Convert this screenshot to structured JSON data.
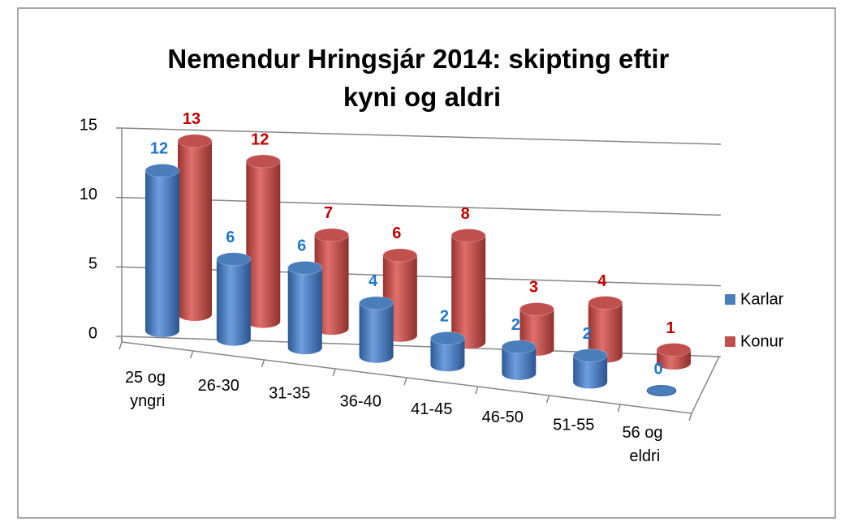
{
  "chart_data": {
    "type": "bar3d",
    "title": "Nemendur Hringsjár 2014: skipting eftir kyni og aldri",
    "categories": [
      "25 og yngri",
      "26-30",
      "31-35",
      "36-40",
      "41-45",
      "46-50",
      "51-55",
      "56 og eldri"
    ],
    "series": [
      {
        "name": "Karlar",
        "color": "#4a7ebb",
        "label_color": "#1f78c8",
        "values": [
          12,
          6,
          6,
          4,
          2,
          2,
          2,
          0
        ]
      },
      {
        "name": "Konur",
        "color": "#c0504d",
        "label_color": "#c00000",
        "values": [
          13,
          12,
          7,
          6,
          8,
          3,
          4,
          1
        ]
      }
    ],
    "ylim": [
      0,
      15
    ],
    "yticks": [
      0,
      5,
      10,
      15
    ],
    "grid": true,
    "legend": "right"
  }
}
